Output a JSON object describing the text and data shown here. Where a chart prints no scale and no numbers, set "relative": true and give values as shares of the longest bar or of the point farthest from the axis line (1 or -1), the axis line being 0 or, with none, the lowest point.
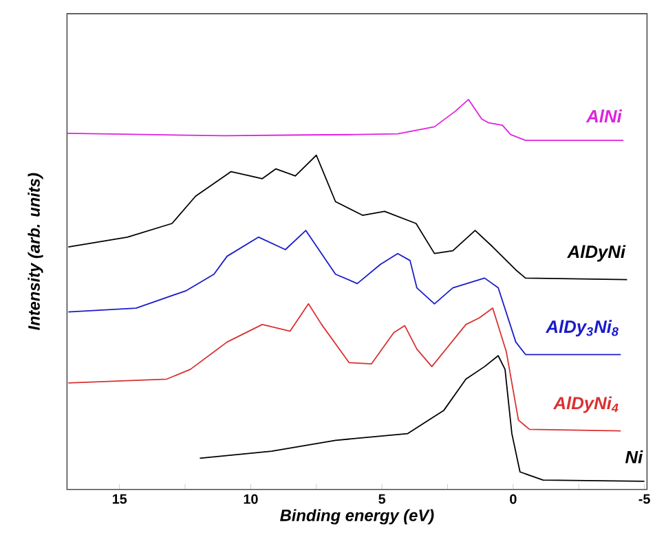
{
  "chart_data": {
    "type": "line",
    "relative": true,
    "xlabel": "Binding energy (eV)",
    "ylabel": "Intensity (arb. units)",
    "xlim": [
      17,
      -5.1
    ],
    "xticks": [
      15,
      {
        "value": 12.5,
        "label": null
      },
      10,
      {
        "value": 7.5,
        "label": null
      },
      5,
      {
        "value": 2.5,
        "label": null
      },
      0,
      {
        "value": -2.5,
        "label": null
      },
      -5
    ],
    "grid": false,
    "legend": false,
    "marker": "none",
    "line_style": "solid",
    "series": [
      {
        "name": "AlNi",
        "color": "#e020e0",
        "x": [
          17,
          14,
          11,
          8,
          6,
          4.4,
          3,
          2.2,
          1.7,
          1.2,
          0.93,
          0.41,
          0.1,
          -0.47,
          -4.2
        ],
        "values": [
          0.913,
          0.91,
          0.907,
          0.909,
          0.91,
          0.912,
          0.93,
          0.97,
          1.0,
          0.95,
          0.94,
          0.934,
          0.91,
          0.895,
          0.895
        ]
      },
      {
        "name": "AlDyNi",
        "color": "#000000",
        "x": [
          16.95,
          14.7,
          13.0,
          12.1,
          10.75,
          9.56,
          9.04,
          8.3,
          7.5,
          6.77,
          5.74,
          4.9,
          3.7,
          3.0,
          2.3,
          1.45,
          0.78,
          -0.1,
          -0.47,
          -4.34
        ],
        "values": [
          0.622,
          0.647,
          0.682,
          0.752,
          0.815,
          0.797,
          0.822,
          0.804,
          0.857,
          0.738,
          0.703,
          0.713,
          0.682,
          0.605,
          0.612,
          0.664,
          0.622,
          0.563,
          0.542,
          0.538
        ]
      },
      {
        "name": "AlDy$_{3}$Ni$_{8}$",
        "color": "#1a1acc",
        "x": [
          16.95,
          14.37,
          12.45,
          11.4,
          10.9,
          9.7,
          8.68,
          7.9,
          6.77,
          5.94,
          5.06,
          4.4,
          3.93,
          3.67,
          3.0,
          2.3,
          1.09,
          0.57,
          -0.1,
          -0.47,
          -4.1
        ],
        "values": [
          0.455,
          0.465,
          0.51,
          0.552,
          0.598,
          0.647,
          0.615,
          0.664,
          0.552,
          0.528,
          0.577,
          0.605,
          0.587,
          0.517,
          0.476,
          0.517,
          0.542,
          0.517,
          0.378,
          0.346,
          0.346
        ]
      },
      {
        "name": "AlDyNi$_{4}$",
        "color": "#d93030",
        "x": [
          16.95,
          13.2,
          12.3,
          10.9,
          9.56,
          8.5,
          7.8,
          7.3,
          6.25,
          5.4,
          4.55,
          4.13,
          3.67,
          3.1,
          1.8,
          1.29,
          0.78,
          0.26,
          -0.2,
          -0.62,
          -4.1
        ],
        "values": [
          0.273,
          0.283,
          0.308,
          0.378,
          0.423,
          0.406,
          0.476,
          0.423,
          0.325,
          0.322,
          0.402,
          0.42,
          0.36,
          0.315,
          0.423,
          0.44,
          0.465,
          0.353,
          0.178,
          0.154,
          0.15
        ]
      },
      {
        "name": "Ni",
        "color": "#000000",
        "x": [
          11.94,
          9.2,
          6.77,
          4.03,
          2.64,
          1.8,
          1.09,
          0.57,
          0.31,
          0.05,
          -0.26,
          -1.14,
          -5.0
        ],
        "values": [
          0.08,
          0.098,
          0.126,
          0.143,
          0.203,
          0.283,
          0.315,
          0.343,
          0.308,
          0.143,
          0.045,
          0.024,
          0.021
        ]
      }
    ]
  }
}
